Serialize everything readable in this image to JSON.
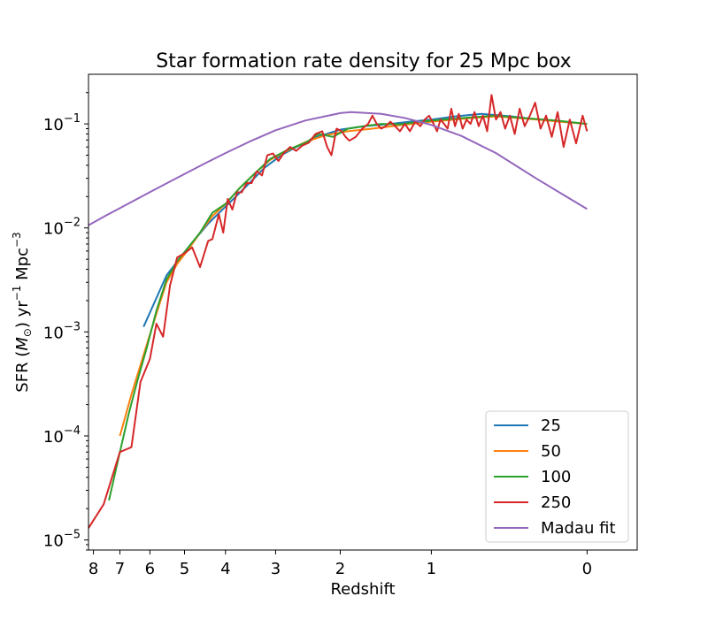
{
  "chart_data": {
    "type": "line",
    "title": "Star formation rate density for 25 Mpc box",
    "xlabel": "Redshift",
    "ylabel": "SFR (M☉) yr⁻¹ Mpc⁻³",
    "x_scale": "log(1+z), reversed",
    "y_scale": "log",
    "xlim": [
      8.2,
      -0.2
    ],
    "ylim": [
      8e-06,
      0.3
    ],
    "xticks": [
      8,
      7,
      6,
      5,
      4,
      3,
      2,
      1,
      0
    ],
    "yticks": [
      {
        "value": 1e-05,
        "base": "10",
        "exp": "−5"
      },
      {
        "value": 0.0001,
        "base": "10",
        "exp": "−4"
      },
      {
        "value": 0.001,
        "base": "10",
        "exp": "−3"
      },
      {
        "value": 0.01,
        "base": "10",
        "exp": "−2"
      },
      {
        "value": 0.1,
        "base": "10",
        "exp": "−1"
      }
    ],
    "grid": false,
    "legend_position": "lower right",
    "series": [
      {
        "name": "25",
        "color": "#1f77b4",
        "points": [
          [
            6.2,
            0.00112
          ],
          [
            5.5,
            0.0035
          ],
          [
            4.9,
            0.0065
          ],
          [
            4.4,
            0.011
          ],
          [
            4.0,
            0.016
          ],
          [
            3.6,
            0.024
          ],
          [
            3.2,
            0.038
          ],
          [
            2.9,
            0.05
          ],
          [
            2.6,
            0.062
          ],
          [
            2.3,
            0.076
          ],
          [
            2.0,
            0.088
          ],
          [
            1.7,
            0.095
          ],
          [
            1.4,
            0.1
          ],
          [
            1.2,
            0.105
          ],
          [
            1.0,
            0.11
          ],
          [
            0.8,
            0.118
          ],
          [
            0.6,
            0.125
          ],
          [
            0.4,
            0.118
          ],
          [
            0.2,
            0.108
          ],
          [
            0.0,
            0.1
          ]
        ]
      },
      {
        "name": "50",
        "color": "#ff7f0e",
        "points": [
          [
            7.0,
            0.0001
          ],
          [
            6.6,
            0.00025
          ],
          [
            6.2,
            0.0006
          ],
          [
            5.8,
            0.0015
          ],
          [
            5.5,
            0.003
          ],
          [
            5.2,
            0.0045
          ],
          [
            4.9,
            0.0062
          ],
          [
            4.6,
            0.009
          ],
          [
            4.3,
            0.013
          ],
          [
            4.0,
            0.017
          ],
          [
            3.7,
            0.024
          ],
          [
            3.4,
            0.033
          ],
          [
            3.1,
            0.045
          ],
          [
            2.8,
            0.055
          ],
          [
            2.5,
            0.067
          ],
          [
            2.2,
            0.078
          ],
          [
            1.9,
            0.085
          ],
          [
            1.6,
            0.09
          ],
          [
            1.3,
            0.097
          ],
          [
            1.0,
            0.105
          ],
          [
            0.7,
            0.113
          ],
          [
            0.5,
            0.118
          ],
          [
            0.3,
            0.112
          ],
          [
            0.15,
            0.106
          ],
          [
            0.0,
            0.1
          ]
        ]
      },
      {
        "name": "100",
        "color": "#2ca02c",
        "points": [
          [
            7.4,
            2.4e-05
          ],
          [
            7.0,
            7e-05
          ],
          [
            6.7,
            0.00016
          ],
          [
            6.4,
            0.00034
          ],
          [
            6.1,
            0.0007
          ],
          [
            5.8,
            0.0016
          ],
          [
            5.5,
            0.0032
          ],
          [
            5.2,
            0.0048
          ],
          [
            4.9,
            0.0065
          ],
          [
            4.6,
            0.009
          ],
          [
            4.3,
            0.014
          ],
          [
            4.0,
            0.017
          ],
          [
            3.7,
            0.024
          ],
          [
            3.4,
            0.033
          ],
          [
            3.1,
            0.046
          ],
          [
            2.8,
            0.056
          ],
          [
            2.5,
            0.066
          ],
          [
            2.3,
            0.08
          ],
          [
            2.1,
            0.075
          ],
          [
            1.9,
            0.09
          ],
          [
            1.7,
            0.095
          ],
          [
            1.5,
            0.1
          ],
          [
            1.3,
            0.099
          ],
          [
            1.1,
            0.105
          ],
          [
            0.9,
            0.11
          ],
          [
            0.7,
            0.115
          ],
          [
            0.5,
            0.12
          ],
          [
            0.3,
            0.113
          ],
          [
            0.15,
            0.108
          ],
          [
            0.0,
            0.1
          ]
        ]
      },
      {
        "name": "250",
        "color": "#d62728",
        "points": [
          [
            8.2,
            1.3e-05
          ],
          [
            7.6,
            2.2e-05
          ],
          [
            7.0,
            7e-05
          ],
          [
            6.6,
            7.8e-05
          ],
          [
            6.3,
            0.00033
          ],
          [
            6.0,
            0.00055
          ],
          [
            5.8,
            0.0012
          ],
          [
            5.6,
            0.0009
          ],
          [
            5.4,
            0.0028
          ],
          [
            5.2,
            0.0052
          ],
          [
            5.0,
            0.0057
          ],
          [
            4.8,
            0.0065
          ],
          [
            4.6,
            0.0042
          ],
          [
            4.4,
            0.0075
          ],
          [
            4.3,
            0.0078
          ],
          [
            4.15,
            0.0135
          ],
          [
            4.05,
            0.009
          ],
          [
            3.95,
            0.019
          ],
          [
            3.85,
            0.015
          ],
          [
            3.75,
            0.022
          ],
          [
            3.65,
            0.022
          ],
          [
            3.55,
            0.027
          ],
          [
            3.45,
            0.027
          ],
          [
            3.35,
            0.035
          ],
          [
            3.25,
            0.032
          ],
          [
            3.15,
            0.05
          ],
          [
            3.05,
            0.052
          ],
          [
            2.95,
            0.044
          ],
          [
            2.85,
            0.053
          ],
          [
            2.75,
            0.06
          ],
          [
            2.65,
            0.055
          ],
          [
            2.55,
            0.062
          ],
          [
            2.45,
            0.066
          ],
          [
            2.35,
            0.08
          ],
          [
            2.25,
            0.085
          ],
          [
            2.18,
            0.06
          ],
          [
            2.12,
            0.05
          ],
          [
            2.05,
            0.09
          ],
          [
            1.98,
            0.085
          ],
          [
            1.93,
            0.075
          ],
          [
            1.88,
            0.069
          ],
          [
            1.8,
            0.075
          ],
          [
            1.72,
            0.09
          ],
          [
            1.65,
            0.1
          ],
          [
            1.6,
            0.12
          ],
          [
            1.55,
            0.1
          ],
          [
            1.5,
            0.09
          ],
          [
            1.45,
            0.095
          ],
          [
            1.4,
            0.105
          ],
          [
            1.35,
            0.095
          ],
          [
            1.3,
            0.085
          ],
          [
            1.25,
            0.1
          ],
          [
            1.2,
            0.085
          ],
          [
            1.15,
            0.105
          ],
          [
            1.1,
            0.095
          ],
          [
            1.06,
            0.11
          ],
          [
            1.02,
            0.12
          ],
          [
            0.98,
            0.1
          ],
          [
            0.95,
            0.085
          ],
          [
            0.92,
            0.11
          ],
          [
            0.89,
            0.1
          ],
          [
            0.86,
            0.09
          ],
          [
            0.83,
            0.14
          ],
          [
            0.8,
            0.095
          ],
          [
            0.77,
            0.125
          ],
          [
            0.74,
            0.09
          ],
          [
            0.71,
            0.11
          ],
          [
            0.68,
            0.1
          ],
          [
            0.65,
            0.13
          ],
          [
            0.62,
            0.095
          ],
          [
            0.59,
            0.12
          ],
          [
            0.56,
            0.085
          ],
          [
            0.53,
            0.19
          ],
          [
            0.5,
            0.11
          ],
          [
            0.47,
            0.13
          ],
          [
            0.44,
            0.09
          ],
          [
            0.41,
            0.12
          ],
          [
            0.38,
            0.08
          ],
          [
            0.35,
            0.14
          ],
          [
            0.32,
            0.095
          ],
          [
            0.29,
            0.12
          ],
          [
            0.26,
            0.16
          ],
          [
            0.23,
            0.09
          ],
          [
            0.2,
            0.12
          ],
          [
            0.17,
            0.075
          ],
          [
            0.14,
            0.13
          ],
          [
            0.11,
            0.06
          ],
          [
            0.08,
            0.11
          ],
          [
            0.05,
            0.065
          ],
          [
            0.02,
            0.12
          ],
          [
            0.0,
            0.085
          ]
        ]
      },
      {
        "name": "Madau fit",
        "color": "#9467bd",
        "points": [
          [
            8.2,
            0.0106
          ],
          [
            7.5,
            0.0132
          ],
          [
            7.0,
            0.0155
          ],
          [
            6.5,
            0.0184
          ],
          [
            6.0,
            0.0221
          ],
          [
            5.5,
            0.0268
          ],
          [
            5.0,
            0.033
          ],
          [
            4.5,
            0.0413
          ],
          [
            4.0,
            0.0524
          ],
          [
            3.5,
            0.0673
          ],
          [
            3.0,
            0.0868
          ],
          [
            2.5,
            0.108
          ],
          [
            2.0,
            0.127
          ],
          [
            1.86,
            0.13
          ],
          [
            1.5,
            0.125
          ],
          [
            1.25,
            0.114
          ],
          [
            1.0,
            0.0978
          ],
          [
            0.75,
            0.0767
          ],
          [
            0.5,
            0.0524
          ],
          [
            0.25,
            0.0296
          ],
          [
            0.0,
            0.0152
          ]
        ]
      }
    ]
  }
}
